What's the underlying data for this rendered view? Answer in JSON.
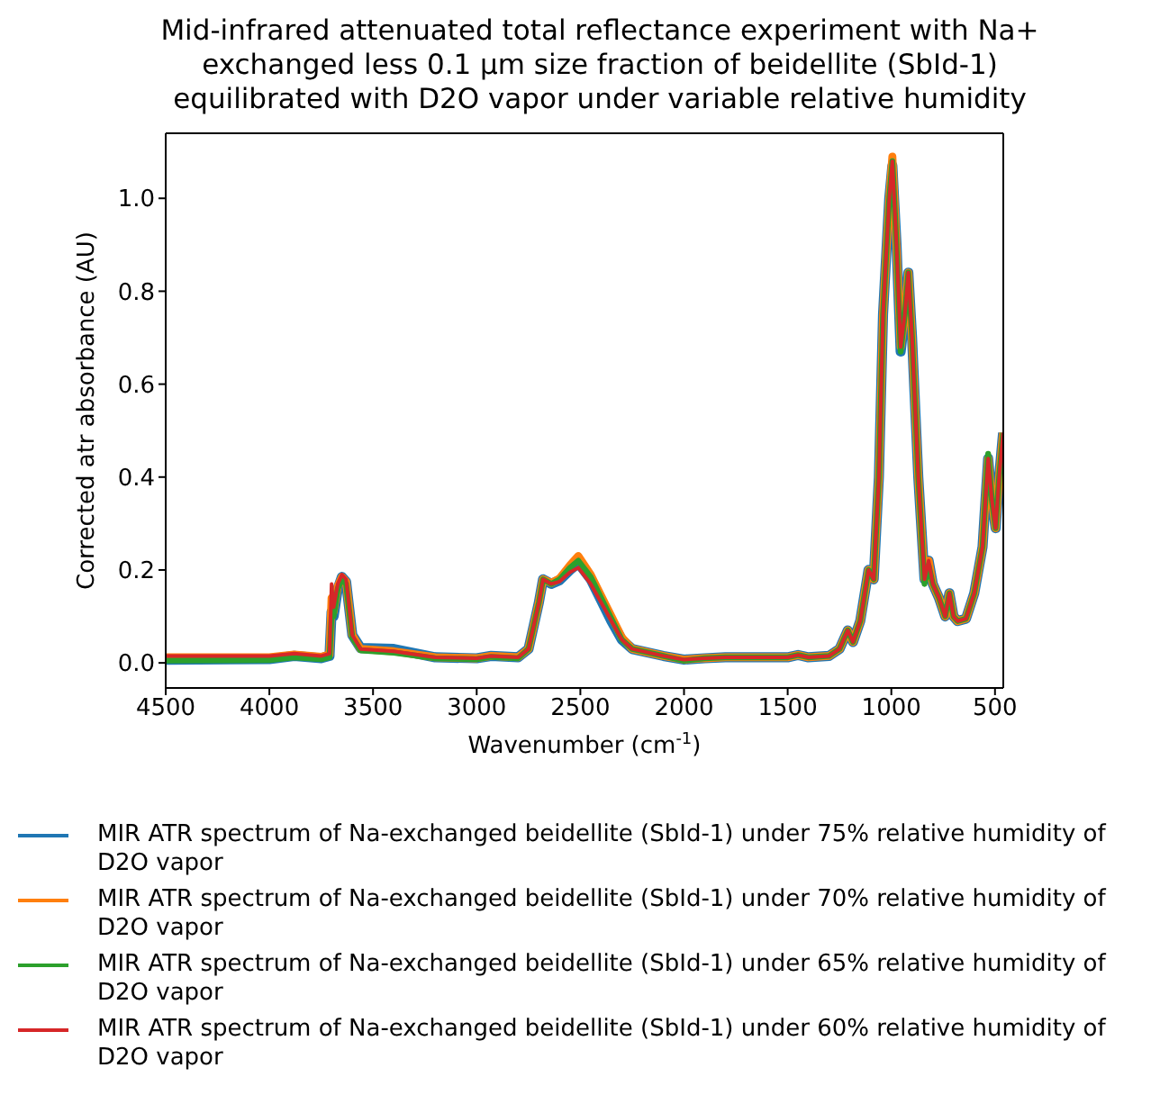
{
  "chart_data": {
    "type": "line",
    "title": "Mid-infrared attenuated total reflectance experiment with Na+ exchanged less 0.1 µm size fraction of beidellite (SbId-1) equilibrated with D2O vapor under variable relative humidity",
    "xlabel": "Wavenumber (cm$^{-1}$)",
    "ylabel": "Corrected atr absorbance (AU)",
    "x": [
      4500,
      4000,
      3880,
      3750,
      3710,
      3700,
      3690,
      3670,
      3650,
      3630,
      3600,
      3560,
      3400,
      3200,
      3000,
      2930,
      2800,
      2750,
      2700,
      2680,
      2640,
      2600,
      2550,
      2510,
      2450,
      2400,
      2350,
      2300,
      2250,
      2100,
      2000,
      1900,
      1800,
      1700,
      1500,
      1450,
      1400,
      1300,
      1250,
      1210,
      1185,
      1150,
      1110,
      1085,
      1060,
      1040,
      1010,
      995,
      975,
      955,
      935,
      918,
      900,
      870,
      840,
      820,
      800,
      770,
      740,
      720,
      700,
      680,
      640,
      600,
      560,
      533,
      515,
      497,
      480,
      461
    ],
    "series": [
      {
        "name": "MIR ATR spectrum of Na-exchanged beidellite (SbId-1) under 75% relative humidity of D2O vapor",
        "color": "#1f77b4",
        "values": [
          0.007,
          0.008,
          0.015,
          0.01,
          0.015,
          0.11,
          0.1,
          0.16,
          0.185,
          0.175,
          0.06,
          0.032,
          0.03,
          0.012,
          0.01,
          0.015,
          0.012,
          0.03,
          0.13,
          0.18,
          0.17,
          0.178,
          0.2,
          0.215,
          0.18,
          0.135,
          0.09,
          0.05,
          0.03,
          0.015,
          0.007,
          0.01,
          0.012,
          0.012,
          0.012,
          0.017,
          0.012,
          0.015,
          0.03,
          0.07,
          0.045,
          0.09,
          0.2,
          0.18,
          0.4,
          0.75,
          1.0,
          1.07,
          0.9,
          0.67,
          0.75,
          0.84,
          0.7,
          0.4,
          0.18,
          0.22,
          0.17,
          0.14,
          0.1,
          0.15,
          0.1,
          0.09,
          0.095,
          0.15,
          0.25,
          0.44,
          0.35,
          0.29,
          0.4,
          0.495
        ]
      },
      {
        "name": "MIR ATR spectrum of Na-exchanged beidellite (SbId-1) under 70% relative humidity of D2O vapor",
        "color": "#ff7f0e",
        "values": [
          0.012,
          0.012,
          0.018,
          0.013,
          0.018,
          0.14,
          0.11,
          0.165,
          0.185,
          0.175,
          0.06,
          0.03,
          0.025,
          0.012,
          0.01,
          0.015,
          0.012,
          0.03,
          0.13,
          0.18,
          0.172,
          0.182,
          0.21,
          0.23,
          0.19,
          0.145,
          0.1,
          0.055,
          0.03,
          0.015,
          0.007,
          0.01,
          0.012,
          0.012,
          0.012,
          0.017,
          0.012,
          0.015,
          0.03,
          0.07,
          0.045,
          0.09,
          0.2,
          0.18,
          0.4,
          0.75,
          1.0,
          1.09,
          0.9,
          0.68,
          0.75,
          0.84,
          0.7,
          0.4,
          0.18,
          0.22,
          0.17,
          0.14,
          0.1,
          0.15,
          0.1,
          0.09,
          0.095,
          0.15,
          0.25,
          0.44,
          0.35,
          0.29,
          0.4,
          0.495
        ]
      },
      {
        "name": "MIR ATR spectrum of Na-exchanged beidellite (SbId-1) under 65% relative humidity of D2O vapor",
        "color": "#2ca02c",
        "values": [
          0.005,
          0.006,
          0.012,
          0.008,
          0.012,
          0.1,
          0.1,
          0.16,
          0.18,
          0.17,
          0.055,
          0.027,
          0.022,
          0.01,
          0.008,
          0.013,
          0.01,
          0.03,
          0.13,
          0.18,
          0.17,
          0.18,
          0.205,
          0.22,
          0.185,
          0.14,
          0.095,
          0.05,
          0.03,
          0.015,
          0.005,
          0.01,
          0.012,
          0.012,
          0.012,
          0.017,
          0.012,
          0.015,
          0.03,
          0.07,
          0.045,
          0.09,
          0.2,
          0.18,
          0.4,
          0.75,
          1.0,
          1.08,
          0.9,
          0.67,
          0.75,
          0.84,
          0.7,
          0.4,
          0.17,
          0.21,
          0.17,
          0.14,
          0.1,
          0.15,
          0.1,
          0.09,
          0.095,
          0.15,
          0.25,
          0.45,
          0.35,
          0.29,
          0.4,
          0.495
        ]
      },
      {
        "name": "MIR ATR spectrum of Na-exchanged beidellite (SbId-1) under 60% relative humidity of D2O vapor",
        "color": "#d62728",
        "values": [
          0.015,
          0.015,
          0.02,
          0.015,
          0.02,
          0.17,
          0.12,
          0.17,
          0.19,
          0.18,
          0.06,
          0.03,
          0.025,
          0.012,
          0.01,
          0.015,
          0.012,
          0.03,
          0.13,
          0.18,
          0.17,
          0.175,
          0.195,
          0.205,
          0.17,
          0.13,
          0.09,
          0.05,
          0.03,
          0.015,
          0.007,
          0.01,
          0.012,
          0.012,
          0.012,
          0.017,
          0.012,
          0.015,
          0.03,
          0.07,
          0.045,
          0.09,
          0.2,
          0.18,
          0.4,
          0.75,
          1.0,
          1.08,
          0.9,
          0.68,
          0.75,
          0.84,
          0.7,
          0.4,
          0.18,
          0.22,
          0.17,
          0.14,
          0.1,
          0.15,
          0.1,
          0.09,
          0.095,
          0.15,
          0.25,
          0.44,
          0.35,
          0.29,
          0.4,
          0.495
        ]
      }
    ],
    "xlim": [
      4500,
      460
    ],
    "xticks": [
      4500,
      4000,
      3500,
      3000,
      2500,
      2000,
      1500,
      1000,
      500
    ],
    "ylim": [
      -0.054,
      1.14
    ],
    "yticks": [
      {
        "value": 0,
        "label": "0.0"
      },
      {
        "value": 0.2,
        "label": "0.2"
      },
      {
        "value": 0.4,
        "label": "0.4"
      },
      {
        "value": 0.6,
        "label": "0.6"
      },
      {
        "value": 0.8,
        "label": "0.8"
      },
      {
        "value": 1,
        "label": "1.0"
      }
    ],
    "grid": false,
    "legend": "bottom",
    "line_style": "solid"
  }
}
